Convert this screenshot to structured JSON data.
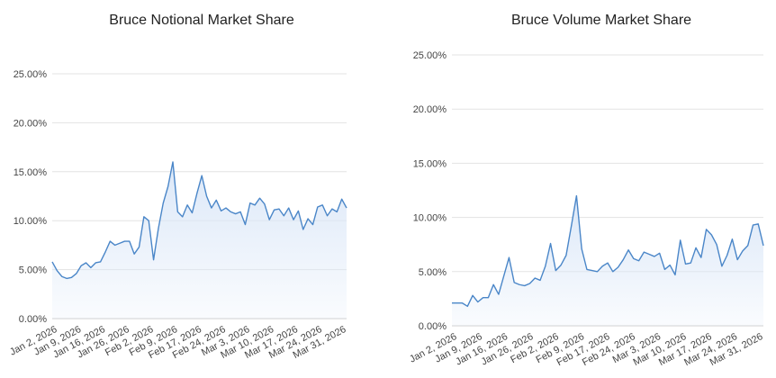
{
  "chart_data": [
    {
      "type": "area",
      "title": "Bruce Notional Market Share",
      "line_color": "#4a86c8",
      "fill_color": "#dce8f8",
      "ylim": [
        0,
        25
      ],
      "y_ticks": [
        "0.00%",
        "5.00%",
        "10.00%",
        "15.00%",
        "20.00%",
        "25.00%"
      ],
      "x_tick_labels": [
        "Jan 2, 2026",
        "Jan 9, 2026",
        "Jan 16, 2026",
        "Jan 26, 2026",
        "Feb 2, 2026",
        "Feb 9, 2026",
        "Feb 17, 2026",
        "Feb 24, 2026",
        "Mar 3, 2026",
        "Mar 10, 2026",
        "Mar 17, 2026",
        "Mar 24, 2026",
        "Mar 31, 2026"
      ],
      "grid": true,
      "series": [
        {
          "values": [
            5.8,
            4.9,
            4.3,
            4.1,
            4.2,
            4.6,
            5.4,
            5.7,
            5.2,
            5.7,
            5.8,
            6.8,
            7.9,
            7.5,
            7.7,
            7.9,
            7.9,
            6.6,
            7.3,
            10.4,
            10.0,
            6.0,
            9.2,
            11.8,
            13.5,
            16.0,
            10.9,
            10.4,
            11.6,
            10.8,
            12.8,
            14.6,
            12.5,
            11.3,
            12.1,
            11.0,
            11.3,
            10.9,
            10.7,
            10.9,
            9.6,
            11.8,
            11.6,
            12.3,
            11.7,
            10.1,
            11.1,
            11.2,
            10.5,
            11.3,
            10.1,
            11.0,
            9.1,
            10.2,
            9.6,
            11.4,
            11.6,
            10.5,
            11.2,
            10.9,
            12.2,
            11.3
          ]
        }
      ]
    },
    {
      "type": "area",
      "title": "Bruce Volume Market Share",
      "line_color": "#4a86c8",
      "fill_color": "#dce8f8",
      "ylim": [
        0,
        25
      ],
      "y_ticks": [
        "0.00%",
        "5.00%",
        "10.00%",
        "15.00%",
        "20.00%",
        "25.00%"
      ],
      "x_tick_labels": [
        "Jan 2, 2026",
        "Jan 9, 2026",
        "Jan 16, 2026",
        "Jan 26, 2026",
        "Feb 2, 2026",
        "Feb 9, 2026",
        "Feb 17, 2026",
        "Feb 24, 2026",
        "Mar 3, 2026",
        "Mar 10, 2026",
        "Mar 17, 2026",
        "Mar 24, 2026",
        "Mar 31, 2026"
      ],
      "grid": true,
      "series": [
        {
          "values": [
            2.1,
            2.1,
            2.1,
            1.8,
            2.8,
            2.2,
            2.6,
            2.6,
            3.8,
            2.9,
            4.6,
            6.3,
            4.0,
            3.8,
            3.7,
            3.9,
            4.4,
            4.2,
            5.5,
            7.6,
            5.1,
            5.6,
            6.5,
            9.2,
            12.0,
            7.1,
            5.2,
            5.1,
            5.0,
            5.5,
            5.8,
            5.0,
            5.4,
            6.1,
            7.0,
            6.2,
            6.0,
            6.8,
            6.6,
            6.4,
            6.7,
            5.2,
            5.6,
            4.7,
            7.9,
            5.7,
            5.8,
            7.2,
            6.3,
            8.9,
            8.4,
            7.5,
            5.5,
            6.5,
            8.0,
            6.1,
            6.9,
            7.4,
            9.3,
            9.4,
            7.4
          ]
        }
      ]
    }
  ]
}
